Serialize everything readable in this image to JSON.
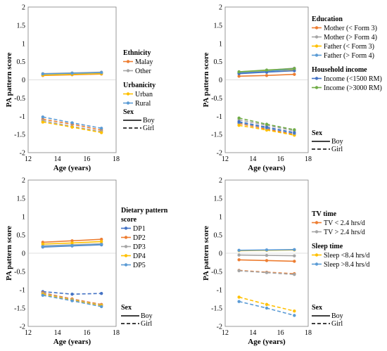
{
  "chart_data": [
    {
      "type": "line",
      "ylabel": "PA pattern score",
      "xlabel": "Age (years)",
      "xlim": [
        12,
        18
      ],
      "ylim": [
        -2,
        2
      ],
      "xticks": [
        "12",
        "14",
        "16",
        "18"
      ],
      "yticks": [
        "2",
        "1.5",
        "1",
        "0.5",
        "0",
        "-0.5",
        "-1",
        "-1.5",
        "-2"
      ],
      "x": [
        13,
        15,
        17
      ],
      "legend_groups": [
        {
          "title": "Ethnicity",
          "items": [
            {
              "name": "Malay",
              "color": "#ed7d31"
            },
            {
              "name": "Other",
              "color": "#a5a5a5"
            }
          ]
        },
        {
          "title": "Urbanicity",
          "items": [
            {
              "name": "Urban",
              "color": "#ffc000"
            },
            {
              "name": "Rural",
              "color": "#5b9bd5"
            }
          ]
        }
      ],
      "sex_legend": {
        "title": "Sex",
        "boy": "Boy",
        "girl": "Girl"
      },
      "series": [
        {
          "name": "Malay",
          "sex": "Boy",
          "color": "#ed7d31",
          "values": [
            0.12,
            0.14,
            0.16
          ]
        },
        {
          "name": "Other",
          "sex": "Boy",
          "color": "#a5a5a5",
          "values": [
            0.17,
            0.19,
            0.21
          ]
        },
        {
          "name": "Urban",
          "sex": "Boy",
          "color": "#ffc000",
          "values": [
            0.13,
            0.15,
            0.17
          ]
        },
        {
          "name": "Rural",
          "sex": "Boy",
          "color": "#5b9bd5",
          "values": [
            0.16,
            0.18,
            0.2
          ]
        },
        {
          "name": "Malay",
          "sex": "Girl",
          "color": "#ed7d31",
          "values": [
            -1.08,
            -1.22,
            -1.38
          ]
        },
        {
          "name": "Other",
          "sex": "Girl",
          "color": "#a5a5a5",
          "values": [
            -1.12,
            -1.28,
            -1.42
          ]
        },
        {
          "name": "Urban",
          "sex": "Girl",
          "color": "#ffc000",
          "values": [
            -1.16,
            -1.3,
            -1.45
          ]
        },
        {
          "name": "Rural",
          "sex": "Girl",
          "color": "#5b9bd5",
          "values": [
            -1.02,
            -1.18,
            -1.33
          ]
        }
      ]
    },
    {
      "type": "line",
      "ylabel": "PA pattern score",
      "xlabel": "Age (years)",
      "xlim": [
        12,
        18
      ],
      "ylim": [
        -2,
        2
      ],
      "xticks": [
        "12",
        "14",
        "16",
        "18"
      ],
      "yticks": [
        "2",
        "1.5",
        "1",
        "0.5",
        "0",
        "-0.5",
        "-1",
        "-1.5",
        "-2"
      ],
      "x": [
        13,
        15,
        17
      ],
      "legend_groups": [
        {
          "title": "Education",
          "items": [
            {
              "name": "Mother (< Form 3)",
              "color": "#ed7d31"
            },
            {
              "name": "Mother (> Form 4)",
              "color": "#a5a5a5"
            },
            {
              "name": "Father (< Form 3)",
              "color": "#ffc000"
            },
            {
              "name": "Father (> Form 4)",
              "color": "#5b9bd5"
            }
          ]
        },
        {
          "title": "Household income",
          "items": [
            {
              "name": "Income (<1500 RM)",
              "color": "#4472c4"
            },
            {
              "name": "Income (>3000 RM)",
              "color": "#70ad47"
            }
          ]
        }
      ],
      "sex_legend": {
        "title": "Sex",
        "boy": "Boy",
        "girl": "Girl"
      },
      "series": [
        {
          "name": "Mother (< Form 3)",
          "sex": "Boy",
          "color": "#ed7d31",
          "values": [
            0.1,
            0.12,
            0.15
          ]
        },
        {
          "name": "Mother (> Form 4)",
          "sex": "Boy",
          "color": "#a5a5a5",
          "values": [
            0.22,
            0.26,
            0.32
          ]
        },
        {
          "name": "Father (< Form 3)",
          "sex": "Boy",
          "color": "#ffc000",
          "values": [
            0.2,
            0.24,
            0.28
          ]
        },
        {
          "name": "Father (> Form 4)",
          "sex": "Boy",
          "color": "#5b9bd5",
          "values": [
            0.19,
            0.23,
            0.3
          ]
        },
        {
          "name": "Income (<1500 RM)",
          "sex": "Boy",
          "color": "#4472c4",
          "values": [
            0.17,
            0.21,
            0.25
          ]
        },
        {
          "name": "Income (>3000 RM)",
          "sex": "Boy",
          "color": "#70ad47",
          "values": [
            0.22,
            0.27,
            0.31
          ]
        },
        {
          "name": "Mother (< Form 3)",
          "sex": "Girl",
          "color": "#ed7d31",
          "values": [
            -1.2,
            -1.35,
            -1.5
          ]
        },
        {
          "name": "Mother (> Form 4)",
          "sex": "Girl",
          "color": "#a5a5a5",
          "values": [
            -1.1,
            -1.25,
            -1.4
          ]
        },
        {
          "name": "Father (< Form 3)",
          "sex": "Girl",
          "color": "#ffc000",
          "values": [
            -1.25,
            -1.38,
            -1.52
          ]
        },
        {
          "name": "Father (> Form 4)",
          "sex": "Girl",
          "color": "#5b9bd5",
          "values": [
            -1.17,
            -1.32,
            -1.47
          ]
        },
        {
          "name": "Income (<1500 RM)",
          "sex": "Girl",
          "color": "#4472c4",
          "values": [
            -1.15,
            -1.3,
            -1.45
          ]
        },
        {
          "name": "Income (>3000 RM)",
          "sex": "Girl",
          "color": "#70ad47",
          "values": [
            -1.05,
            -1.22,
            -1.37
          ]
        }
      ]
    },
    {
      "type": "line",
      "ylabel": "PA pattern score",
      "xlabel": "Age (years)",
      "xlim": [
        12,
        18
      ],
      "ylim": [
        -2,
        2
      ],
      "xticks": [
        "12",
        "14",
        "16",
        "18"
      ],
      "yticks": [
        "2",
        "1.5",
        "1",
        "0.5",
        "0",
        "-0.5",
        "-1",
        "-1.5",
        "-2"
      ],
      "x": [
        13,
        15,
        17
      ],
      "legend_groups": [
        {
          "title": "Dietary pattern score",
          "items": [
            {
              "name": "DP1",
              "color": "#4472c4"
            },
            {
              "name": "DP2",
              "color": "#ed7d31"
            },
            {
              "name": "DP3",
              "color": "#a5a5a5"
            },
            {
              "name": "DP4",
              "color": "#ffc000"
            },
            {
              "name": "DP5",
              "color": "#5b9bd5"
            }
          ]
        }
      ],
      "sex_legend": {
        "title": "Sex",
        "boy": "Boy",
        "girl": "Girl"
      },
      "series": [
        {
          "name": "DP1",
          "sex": "Boy",
          "color": "#4472c4",
          "values": [
            0.17,
            0.2,
            0.23
          ]
        },
        {
          "name": "DP2",
          "sex": "Boy",
          "color": "#ed7d31",
          "values": [
            0.3,
            0.34,
            0.38
          ]
        },
        {
          "name": "DP3",
          "sex": "Boy",
          "color": "#a5a5a5",
          "values": [
            0.2,
            0.23,
            0.26
          ]
        },
        {
          "name": "DP4",
          "sex": "Boy",
          "color": "#ffc000",
          "values": [
            0.25,
            0.28,
            0.32
          ]
        },
        {
          "name": "DP5",
          "sex": "Boy",
          "color": "#5b9bd5",
          "values": [
            0.18,
            0.21,
            0.24
          ]
        },
        {
          "name": "DP1",
          "sex": "Girl",
          "color": "#4472c4",
          "values": [
            -1.05,
            -1.12,
            -1.1
          ]
        },
        {
          "name": "DP2",
          "sex": "Girl",
          "color": "#ed7d31",
          "values": [
            -1.08,
            -1.25,
            -1.4
          ]
        },
        {
          "name": "DP3",
          "sex": "Girl",
          "color": "#a5a5a5",
          "values": [
            -1.1,
            -1.27,
            -1.42
          ]
        },
        {
          "name": "DP4",
          "sex": "Girl",
          "color": "#ffc000",
          "values": [
            -1.12,
            -1.28,
            -1.43
          ]
        },
        {
          "name": "DP5",
          "sex": "Girl",
          "color": "#5b9bd5",
          "values": [
            -1.15,
            -1.3,
            -1.46
          ]
        }
      ]
    },
    {
      "type": "line",
      "ylabel": "PA pattern score",
      "xlabel": "Age (years)",
      "xlim": [
        12,
        18
      ],
      "ylim": [
        -2,
        2
      ],
      "xticks": [
        "12",
        "14",
        "16",
        "18"
      ],
      "yticks": [
        "2",
        "1.5",
        "1",
        "0.5",
        "0",
        "-0.5",
        "-1",
        "-1.5",
        "-2"
      ],
      "x": [
        13,
        15,
        17
      ],
      "legend_groups": [
        {
          "title": "TV time",
          "items": [
            {
              "name": "TV < 2.4 hrs/d",
              "color": "#ed7d31"
            },
            {
              "name": "TV > 2.4 hrs/d",
              "color": "#a5a5a5"
            }
          ]
        },
        {
          "title": "Sleep time",
          "items": [
            {
              "name": "Sleep <8.4 hrs/d",
              "color": "#ffc000"
            },
            {
              "name": "Sleep >8.4 hrs/d",
              "color": "#5b9bd5"
            }
          ]
        }
      ],
      "sex_legend": {
        "title": "Sex",
        "boy": "Boy",
        "girl": "Girl"
      },
      "series": [
        {
          "name": "TV < 2.4 hrs/d",
          "sex": "Boy",
          "color": "#ed7d31",
          "values": [
            -0.18,
            -0.2,
            -0.22
          ]
        },
        {
          "name": "TV > 2.4 hrs/d",
          "sex": "Boy",
          "color": "#a5a5a5",
          "values": [
            -0.05,
            -0.06,
            -0.07
          ]
        },
        {
          "name": "Sleep <8.4 hrs/d",
          "sex": "Boy",
          "color": "#ffc000",
          "values": [
            0.07,
            0.08,
            0.09
          ]
        },
        {
          "name": "Sleep >8.4 hrs/d",
          "sex": "Boy",
          "color": "#5b9bd5",
          "values": [
            0.08,
            0.09,
            0.1
          ]
        },
        {
          "name": "TV < 2.4 hrs/d",
          "sex": "Girl",
          "color": "#ed7d31",
          "values": [
            -0.47,
            -0.52,
            -0.56
          ]
        },
        {
          "name": "TV > 2.4 hrs/d",
          "sex": "Girl",
          "color": "#a5a5a5",
          "values": [
            -0.48,
            -0.53,
            -0.58
          ]
        },
        {
          "name": "Sleep <8.4 hrs/d",
          "sex": "Girl",
          "color": "#ffc000",
          "values": [
            -1.2,
            -1.4,
            -1.58
          ]
        },
        {
          "name": "Sleep >8.4 hrs/d",
          "sex": "Girl",
          "color": "#5b9bd5",
          "values": [
            -1.32,
            -1.5,
            -1.7
          ]
        }
      ]
    }
  ]
}
